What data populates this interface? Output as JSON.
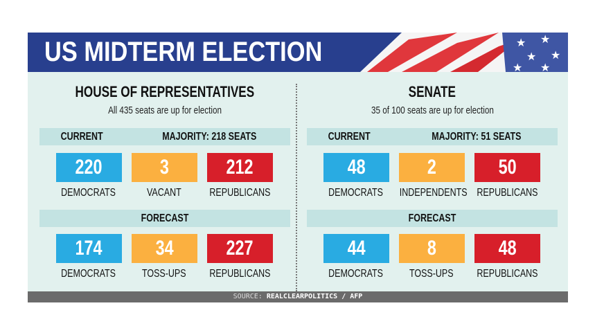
{
  "title": "US MIDTERM ELECTION",
  "colors": {
    "democrats": "#29abe2",
    "middle": "#fbb040",
    "republicans": "#d71f2a",
    "header": "#283f8e"
  },
  "house": {
    "title": "HOUSE OF REPRESENTATIVES",
    "subtitle": "All 435 seats are up for election",
    "current_label": "CURRENT",
    "majority": "MAJORITY: 218 SEATS",
    "current": [
      {
        "value": "220",
        "label": "DEMOCRATS"
      },
      {
        "value": "3",
        "label": "VACANT"
      },
      {
        "value": "212",
        "label": "REPUBLICANS"
      }
    ],
    "forecast_label": "FORECAST",
    "forecast": [
      {
        "value": "174",
        "label": "DEMOCRATS"
      },
      {
        "value": "34",
        "label": "TOSS-UPS"
      },
      {
        "value": "227",
        "label": "REPUBLICANS"
      }
    ]
  },
  "senate": {
    "title": "SENATE",
    "subtitle": "35 of 100 seats are up for election",
    "current_label": "CURRENT",
    "majority": "MAJORITY: 51 SEATS",
    "current": [
      {
        "value": "48",
        "label": "DEMOCRATS"
      },
      {
        "value": "2",
        "label": "INDEPENDENTS"
      },
      {
        "value": "50",
        "label": "REPUBLICANS"
      }
    ],
    "forecast_label": "FORECAST",
    "forecast": [
      {
        "value": "44",
        "label": "DEMOCRATS"
      },
      {
        "value": "8",
        "label": "TOSS-UPS"
      },
      {
        "value": "48",
        "label": "REPUBLICANS"
      }
    ]
  },
  "source": {
    "prefix": "SOURCE:",
    "text": "REALCLEARPOLITICS / AFP"
  }
}
